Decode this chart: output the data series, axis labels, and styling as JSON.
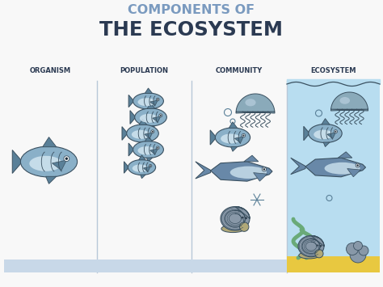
{
  "title_line1": "COMPONENTS OF",
  "title_line2": "THE ECOSYSTEM",
  "title_line1_color": "#7a9abf",
  "title_line2_color": "#2b3a52",
  "bg_color": "#f8f8f8",
  "columns": [
    "ORGANISM",
    "POPULATION",
    "COMMUNITY",
    "ECOSYSTEM"
  ],
  "col_label_color": "#2b3a52",
  "divider_color": "#b8c8d8",
  "ocean_bg": "#b8ddf0",
  "ocean_floor_color": "#e8c840",
  "seaweed_color": "#6aaa78",
  "fish_body_color": "#8ab0c8",
  "fish_fin_color": "#5a8098",
  "fish_belly_color": "#d0e4f0",
  "jelly_dome_color": "#8aaaba",
  "jelly_dome_top": "#b0c8d8",
  "whale_color": "#6888a8",
  "snail_col": "#8898a8",
  "coral_color": "#8898a8",
  "bottom_strip_color": "#c8d8e8",
  "figsize": [
    4.74,
    3.55
  ],
  "dpi": 100
}
